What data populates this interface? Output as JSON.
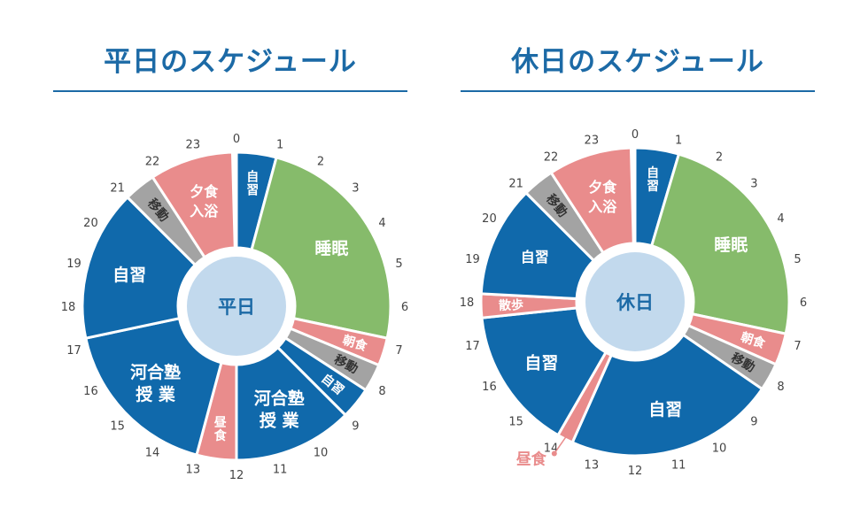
{
  "colors": {
    "blue": "#1069ab",
    "green": "#86bb6b",
    "pink": "#e98c8c",
    "gray": "#a3a3a3",
    "center": "#c2d9ed",
    "title": "#1c6aa6",
    "tick": "#444444"
  },
  "chart_data": [
    {
      "type": "pie",
      "title": "平日のスケジュール",
      "center_label": "平日",
      "hour_ticks": [
        "0",
        "1",
        "2",
        "3",
        "4",
        "5",
        "6",
        "7",
        "8",
        "9",
        "10",
        "11",
        "12",
        "13",
        "14",
        "15",
        "16",
        "17",
        "18",
        "19",
        "20",
        "21",
        "22",
        "23"
      ],
      "segments": [
        {
          "label": "自習",
          "start": 0,
          "end": 1,
          "color": "blue"
        },
        {
          "label": "睡眠",
          "start": 1,
          "end": 6.8,
          "color": "green"
        },
        {
          "label": "朝食",
          "start": 6.8,
          "end": 7.5,
          "color": "pink"
        },
        {
          "label": "移動",
          "start": 7.5,
          "end": 8.2,
          "color": "gray"
        },
        {
          "label": "自習",
          "start": 8.2,
          "end": 9,
          "color": "blue"
        },
        {
          "label": "河合塾\n授 業",
          "start": 9,
          "end": 12,
          "color": "blue"
        },
        {
          "label": "昼食",
          "start": 12,
          "end": 13,
          "color": "pink"
        },
        {
          "label": "河合塾\n授 業",
          "start": 13,
          "end": 17.2,
          "color": "blue"
        },
        {
          "label": "自習",
          "start": 17.2,
          "end": 21,
          "color": "blue"
        },
        {
          "label": "移動",
          "start": 21,
          "end": 21.8,
          "color": "gray"
        },
        {
          "label": "夕食\n入浴",
          "start": 21.8,
          "end": 23.9,
          "color": "pink"
        }
      ]
    },
    {
      "type": "pie",
      "title": "休日のスケジュール",
      "center_label": "休日",
      "hour_ticks": [
        "0",
        "1",
        "2",
        "3",
        "4",
        "5",
        "6",
        "7",
        "8",
        "9",
        "10",
        "11",
        "12",
        "13",
        "14",
        "15",
        "16",
        "17",
        "18",
        "19",
        "20",
        "21",
        "22",
        "23"
      ],
      "segments": [
        {
          "label": "自習",
          "start": 0,
          "end": 1.1,
          "color": "blue"
        },
        {
          "label": "睡眠",
          "start": 1.1,
          "end": 6.8,
          "color": "green"
        },
        {
          "label": "朝食",
          "start": 6.8,
          "end": 7.6,
          "color": "pink"
        },
        {
          "label": "移動",
          "start": 7.6,
          "end": 8.3,
          "color": "gray"
        },
        {
          "label": "自習",
          "start": 8.3,
          "end": 13.6,
          "color": "blue"
        },
        {
          "label": "昼食",
          "start": 13.6,
          "end": 14,
          "color": "pink",
          "callout": true
        },
        {
          "label": "自習",
          "start": 14,
          "end": 17.6,
          "color": "blue"
        },
        {
          "label": "散歩",
          "start": 17.6,
          "end": 18.2,
          "color": "pink"
        },
        {
          "label": "自習",
          "start": 18.2,
          "end": 21,
          "color": "blue"
        },
        {
          "label": "移動",
          "start": 21,
          "end": 21.8,
          "color": "gray"
        },
        {
          "label": "夕食\n入浴",
          "start": 21.8,
          "end": 23.9,
          "color": "pink"
        }
      ]
    }
  ]
}
